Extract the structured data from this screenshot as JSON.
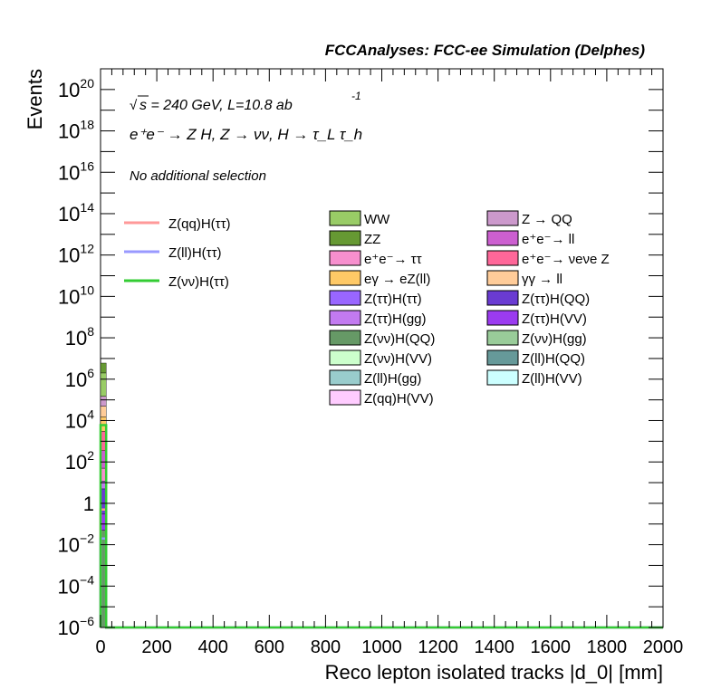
{
  "header": {
    "title": "FCCAnalyses: FCC-ee Simulation (Delphes)"
  },
  "annotations": {
    "energy_prefix": "s = 240 GeV, L=10.8 ab",
    "lumi_exponent": "-1",
    "process": "e⁺e⁻ → Z H, Z → νν, H → τ_L τ_h",
    "selection": "No additional selection"
  },
  "chart_data": {
    "type": "bar",
    "title": "FCCAnalyses: FCC-ee Simulation (Delphes)",
    "xlabel": "Reco lepton isolated tracks |d_0| [mm]",
    "ylabel": "Events",
    "xlim": [
      0,
      2000
    ],
    "ylim": [
      1e-06,
      1e+21
    ],
    "y_scale": "log",
    "x_ticks": [
      "0",
      "200",
      "400",
      "600",
      "800",
      "1000",
      "1200",
      "1400",
      "1600",
      "1800",
      "2000"
    ],
    "y_ticks": [
      {
        "base": "10",
        "exp": "−6",
        "value": 1e-06
      },
      {
        "base": "10",
        "exp": "−4",
        "value": 0.0001
      },
      {
        "base": "10",
        "exp": "−2",
        "value": 0.01
      },
      {
        "base": "1",
        "exp": "",
        "value": 1
      },
      {
        "base": "10",
        "exp": "2",
        "value": 100.0
      },
      {
        "base": "10",
        "exp": "4",
        "value": 10000.0
      },
      {
        "base": "10",
        "exp": "6",
        "value": 1000000.0
      },
      {
        "base": "10",
        "exp": "8",
        "value": 100000000.0
      },
      {
        "base": "10",
        "exp": "10",
        "value": 10000000000.0
      },
      {
        "base": "10",
        "exp": "12",
        "value": 1000000000000.0
      },
      {
        "base": "10",
        "exp": "14",
        "value": 100000000000000.0
      },
      {
        "base": "10",
        "exp": "16",
        "value": 1e+16
      },
      {
        "base": "10",
        "exp": "18",
        "value": 1e+18
      },
      {
        "base": "10",
        "exp": "20",
        "value": 1e+20
      }
    ],
    "bin": {
      "x_low": 0,
      "x_high": 20
    },
    "stack": [
      {
        "name": "Z(νν)H(QQ)",
        "color": "#669966",
        "top": 0.05
      },
      {
        "name": "Z(ττ)H(VV)",
        "color": "#9b3bf0",
        "top": 0.3
      },
      {
        "name": "Z(ττ)H(QQ)",
        "color": "#6a3bd2",
        "top": 5
      },
      {
        "name": "Z(ττ)H(gg)",
        "color": "#c27af0",
        "top": 12
      },
      {
        "name": "e⁺e⁻→ ττ",
        "color": "#f78fce",
        "top": 50
      },
      {
        "name": "e⁺e⁻→ ll",
        "color": "#cc5fd0",
        "top": 350
      },
      {
        "name": "e⁺e⁻→ νeνe Z",
        "color": "#ff6799",
        "top": 3000
      },
      {
        "name": "eγ → eZ(ll)",
        "color": "#ffc966",
        "top": 15000
      },
      {
        "name": "γγ → ll",
        "color": "#ffcc99",
        "top": 50000
      },
      {
        "name": "Z → QQ",
        "color": "#cc99cc",
        "top": 150000
      },
      {
        "name": "WW",
        "color": "#99cc66",
        "top": 2000000
      },
      {
        "name": "ZZ",
        "color": "#669933",
        "top": 6000000
      }
    ],
    "signal_lines": [
      {
        "name": "Z(qq)H(ττ)",
        "color": "#ff9999",
        "value": 0.5
      },
      {
        "name": "Z(ll)H(ττ)",
        "color": "#9999ff",
        "value": 0.02
      },
      {
        "name": "Z(νν)H(ττ)",
        "color": "#33cc33",
        "value": 6000
      }
    ],
    "legend_lines": [
      {
        "label": "Z(qq)H(ττ)",
        "color": "#ff9999"
      },
      {
        "label": "Z(ll)H(ττ)",
        "color": "#9999ff"
      },
      {
        "label": "Z(νν)H(ττ)",
        "color": "#33cc33"
      }
    ],
    "legend_boxes": [
      {
        "label": "WW",
        "color": "#99cc66"
      },
      {
        "label": "Z → QQ",
        "color": "#cc99cc"
      },
      {
        "label": "ZZ",
        "color": "#669933"
      },
      {
        "label": "e⁺e⁻→ ll",
        "color": "#cc5fd0"
      },
      {
        "label": "e⁺e⁻→ ττ",
        "color": "#f78fce"
      },
      {
        "label": "e⁺e⁻→ νeνe Z",
        "color": "#ff6799"
      },
      {
        "label": "eγ → eZ(ll)",
        "color": "#ffc966"
      },
      {
        "label": "γγ → ll",
        "color": "#ffcc99"
      },
      {
        "label": "Z(ττ)H(ττ)",
        "color": "#9966ff"
      },
      {
        "label": "Z(ττ)H(QQ)",
        "color": "#6a3bd2"
      },
      {
        "label": "Z(ττ)H(gg)",
        "color": "#c27af0"
      },
      {
        "label": "Z(ττ)H(VV)",
        "color": "#9b3bf0"
      },
      {
        "label": "Z(νν)H(QQ)",
        "color": "#669966"
      },
      {
        "label": "Z(νν)H(gg)",
        "color": "#99cc99"
      },
      {
        "label": "Z(νν)H(VV)",
        "color": "#ccffcc"
      },
      {
        "label": "Z(ll)H(QQ)",
        "color": "#669999"
      },
      {
        "label": "Z(ll)H(gg)",
        "color": "#99cccc"
      },
      {
        "label": "Z(ll)H(VV)",
        "color": "#ccffff"
      },
      {
        "label": "Z(qq)H(VV)",
        "color": "#ffccff"
      }
    ]
  }
}
